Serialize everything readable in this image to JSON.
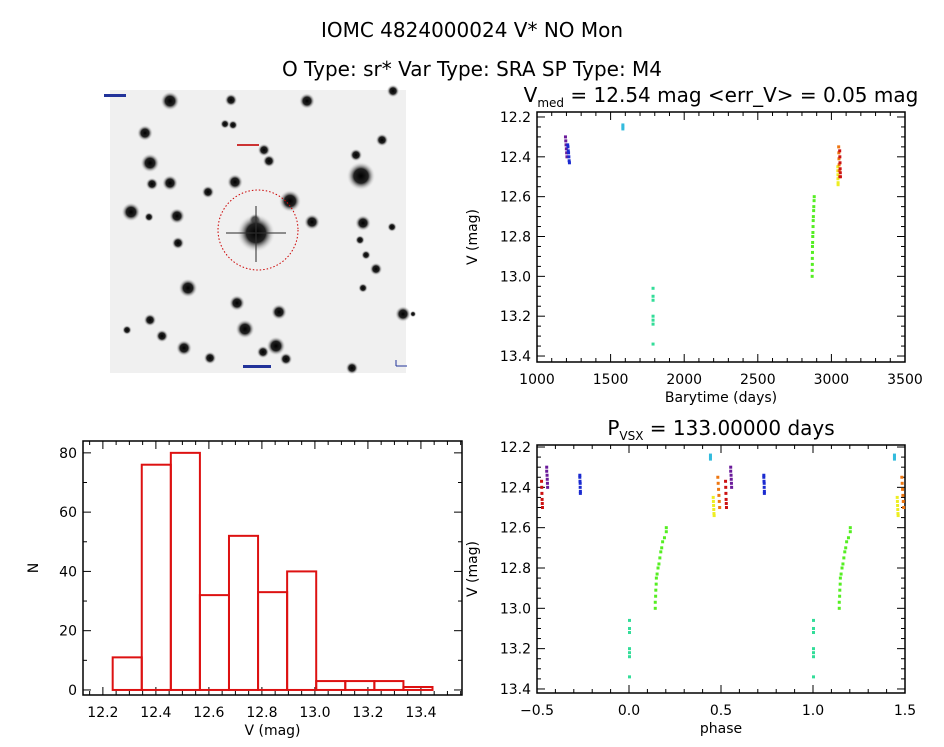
{
  "header": {
    "title": "IOMC 4824000024    V* NO Mon",
    "subtitle": "O Type: sr*  Var Type: SRA  SP Type: M4"
  },
  "finder_chart": {
    "type": "image",
    "description_icon": "sky-finder-image",
    "circle_color": "#cc0000"
  },
  "chart_data": [
    {
      "id": "lightcurve",
      "type": "scatter",
      "title": {
        "main": "V",
        "sub": "med",
        "rest": " = 12.54 mag <err_V> = 0.05 mag"
      },
      "xlabel": "Barytime (days)",
      "ylabel": "V (mag)",
      "xlim": [
        1000,
        3500
      ],
      "ylim": [
        12.175,
        13.43
      ],
      "y_inverted": true,
      "xticks": [
        1000,
        1500,
        2000,
        2500,
        3000,
        3500
      ],
      "xtick_labels": [
        "1000",
        "1500",
        "2000",
        "2500",
        "3000",
        "3500"
      ],
      "yticks": [
        12.2,
        12.4,
        12.6,
        12.8,
        13.0,
        13.2,
        13.4
      ],
      "ytick_labels": [
        "12.2",
        "12.4",
        "12.6",
        "12.8",
        "13.0",
        "13.2",
        "13.4"
      ]
    },
    {
      "id": "histogram",
      "type": "bar",
      "title": "",
      "xlabel": "V (mag)",
      "ylabel": "N",
      "xlim": [
        12.125,
        13.555
      ],
      "ylim": [
        -1.7,
        84
      ],
      "bin_start": 12.237,
      "bin_width": 0.1097,
      "values": [
        11,
        76,
        80,
        32,
        52,
        33,
        40,
        3,
        3,
        3,
        1
      ],
      "color": "#dd1111",
      "xticks": [
        12.2,
        12.4,
        12.6,
        12.8,
        13.0,
        13.2,
        13.4
      ],
      "xtick_labels": [
        "12.2",
        "12.4",
        "12.6",
        "12.8",
        "13.0",
        "13.2",
        "13.4"
      ],
      "yticks": [
        0,
        20,
        40,
        60,
        80
      ],
      "ytick_labels": [
        "0",
        "20",
        "40",
        "60",
        "80"
      ]
    },
    {
      "id": "phased",
      "type": "scatter",
      "title": {
        "main": "P",
        "sub": "VSX",
        "rest": " = 133.00000 days"
      },
      "xlabel": "phase",
      "ylabel": "V (mag)",
      "xlim": [
        -0.5,
        1.5
      ],
      "ylim": [
        12.19,
        13.42
      ],
      "y_inverted": true,
      "xticks": [
        -0.5,
        0.0,
        0.5,
        1.0,
        1.5
      ],
      "xtick_labels": [
        "−0.5",
        "0.0",
        "0.5",
        "1.0",
        "1.5"
      ],
      "yticks": [
        12.2,
        12.4,
        12.6,
        12.8,
        13.0,
        13.2,
        13.4
      ],
      "ytick_labels": [
        "12.2",
        "12.4",
        "12.6",
        "12.8",
        "13.0",
        "13.2",
        "13.4"
      ]
    }
  ],
  "groups": [
    {
      "name": "purple",
      "color": "#6a1a9a",
      "points": [
        [
          1190,
          0.55,
          12.3
        ],
        [
          1192,
          0.55,
          12.32
        ],
        [
          1194,
          0.552,
          12.34
        ],
        [
          1196,
          0.553,
          12.36
        ],
        [
          1198,
          0.554,
          12.38
        ],
        [
          1200,
          0.555,
          12.4
        ]
      ]
    },
    {
      "name": "blue",
      "color": "#1a2ad0",
      "points": [
        [
          1205,
          0.73,
          12.34
        ],
        [
          1207,
          0.73,
          12.35
        ],
        [
          1209,
          0.731,
          12.37
        ],
        [
          1211,
          0.732,
          12.38
        ],
        [
          1213,
          0.732,
          12.4
        ],
        [
          1215,
          0.733,
          12.42
        ],
        [
          1217,
          0.733,
          12.43
        ]
      ]
    },
    {
      "name": "cyan",
      "color": "#33bbdd",
      "points": [
        [
          1580,
          0.44,
          12.24
        ],
        [
          1580,
          0.44,
          12.25
        ],
        [
          1580,
          0.44,
          12.26
        ]
      ]
    },
    {
      "name": "teal",
      "color": "#33dd99",
      "points": [
        [
          1785,
          0.0,
          13.06
        ],
        [
          1785,
          0.0,
          13.1
        ],
        [
          1785,
          0.0,
          13.12
        ],
        [
          1785,
          0.0,
          13.2
        ],
        [
          1785,
          0.0,
          13.22
        ],
        [
          1785,
          0.0,
          13.24
        ],
        [
          1785,
          0.0,
          13.34
        ]
      ]
    },
    {
      "name": "green",
      "color": "#55ee22",
      "points": [
        [
          2866,
          0.14,
          13.0
        ],
        [
          2866,
          0.14,
          12.97
        ],
        [
          2867,
          0.142,
          12.94
        ],
        [
          2867,
          0.143,
          12.91
        ],
        [
          2868,
          0.145,
          12.88
        ],
        [
          2868,
          0.146,
          12.85
        ],
        [
          2869,
          0.15,
          12.83
        ],
        [
          2870,
          0.155,
          12.8
        ],
        [
          2871,
          0.16,
          12.78
        ],
        [
          2872,
          0.165,
          12.75
        ],
        [
          2873,
          0.17,
          12.72
        ],
        [
          2874,
          0.175,
          12.7
        ],
        [
          2876,
          0.18,
          12.67
        ],
        [
          2877,
          0.19,
          12.65
        ],
        [
          2879,
          0.2,
          12.62
        ],
        [
          2880,
          0.2,
          12.6
        ]
      ]
    },
    {
      "name": "yellow",
      "color": "#eeee22",
      "points": [
        [
          3040,
          0.455,
          12.45
        ],
        [
          3040,
          0.456,
          12.47
        ],
        [
          3041,
          0.457,
          12.49
        ],
        [
          3041,
          0.458,
          12.51
        ],
        [
          3042,
          0.459,
          12.53
        ],
        [
          3042,
          0.46,
          12.54
        ]
      ]
    },
    {
      "name": "orange",
      "color": "#ee7711",
      "points": [
        [
          3046,
          0.48,
          12.35
        ],
        [
          3047,
          0.482,
          12.38
        ],
        [
          3048,
          0.484,
          12.41
        ],
        [
          3049,
          0.486,
          12.44
        ],
        [
          3050,
          0.488,
          12.47
        ],
        [
          3051,
          0.49,
          12.5
        ]
      ]
    },
    {
      "name": "red",
      "color": "#cc1111",
      "points": [
        [
          3053,
          0.522,
          12.37
        ],
        [
          3054,
          0.523,
          12.4
        ],
        [
          3055,
          0.524,
          12.43
        ],
        [
          3056,
          0.525,
          12.46
        ],
        [
          3057,
          0.526,
          12.48
        ],
        [
          3058,
          0.527,
          12.5
        ]
      ]
    }
  ]
}
